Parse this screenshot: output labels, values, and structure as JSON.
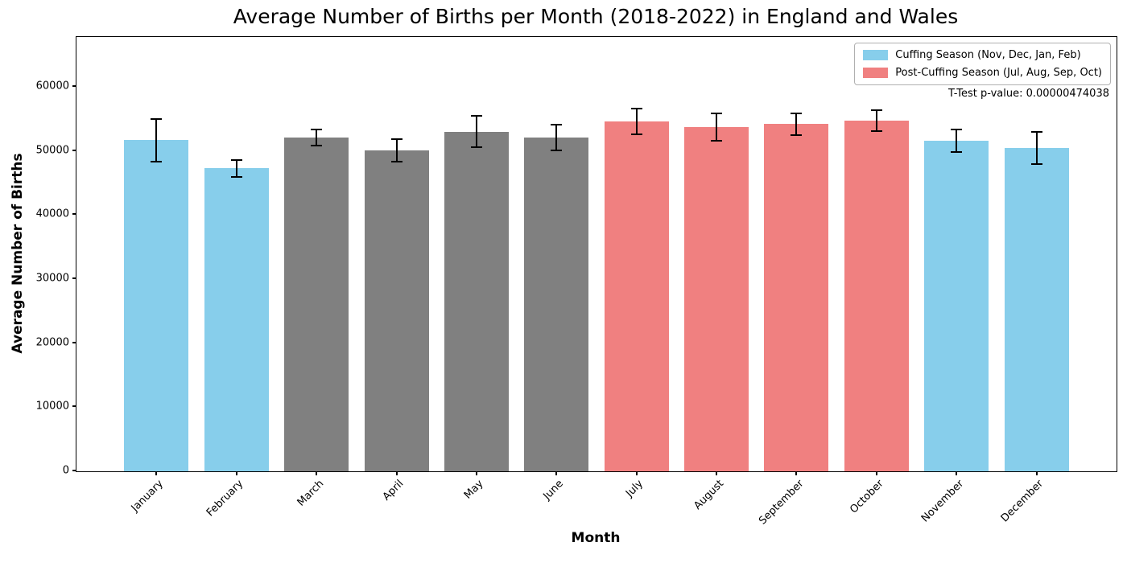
{
  "chart_data": {
    "type": "bar",
    "title": "Average Number of Births per Month (2018-2022) in England and Wales",
    "xlabel": "Month",
    "ylabel": "Average Number of Births",
    "ylim": [
      0,
      67800
    ],
    "yticks": [
      0,
      10000,
      20000,
      30000,
      40000,
      50000,
      60000
    ],
    "grid": false,
    "legend_position": "upper-right-inside-plot",
    "annotation": "T-Test p-value: 0.00000474038",
    "categories": [
      "January",
      "February",
      "March",
      "April",
      "May",
      "June",
      "July",
      "August",
      "September",
      "October",
      "November",
      "December"
    ],
    "series": [
      {
        "name": "Average Number of Births",
        "values": [
          51700,
          47300,
          52100,
          50100,
          53000,
          52100,
          54600,
          53700,
          54200,
          54700,
          51600,
          50500
        ],
        "errors": [
          3300,
          1300,
          1200,
          1700,
          2450,
          2000,
          2000,
          2150,
          1700,
          1650,
          1700,
          2500
        ],
        "bar_colors": [
          "#87CEEB",
          "#87CEEB",
          "#808080",
          "#808080",
          "#808080",
          "#808080",
          "#F08080",
          "#F08080",
          "#F08080",
          "#F08080",
          "#87CEEB",
          "#87CEEB"
        ]
      }
    ],
    "legend": [
      {
        "label": "Cuffing Season (Nov, Dec, Jan, Feb)",
        "color": "#87CEEB"
      },
      {
        "label": "Post-Cuffing Season (Jul, Aug, Sep, Oct)",
        "color": "#F08080"
      }
    ],
    "colors": {
      "cuffing_season": "#87CEEB",
      "post_cuffing_season": "#F08080",
      "other_months": "#808080",
      "error_bar": "#000000",
      "background": "#FFFFFF",
      "spines": "#000000"
    }
  }
}
